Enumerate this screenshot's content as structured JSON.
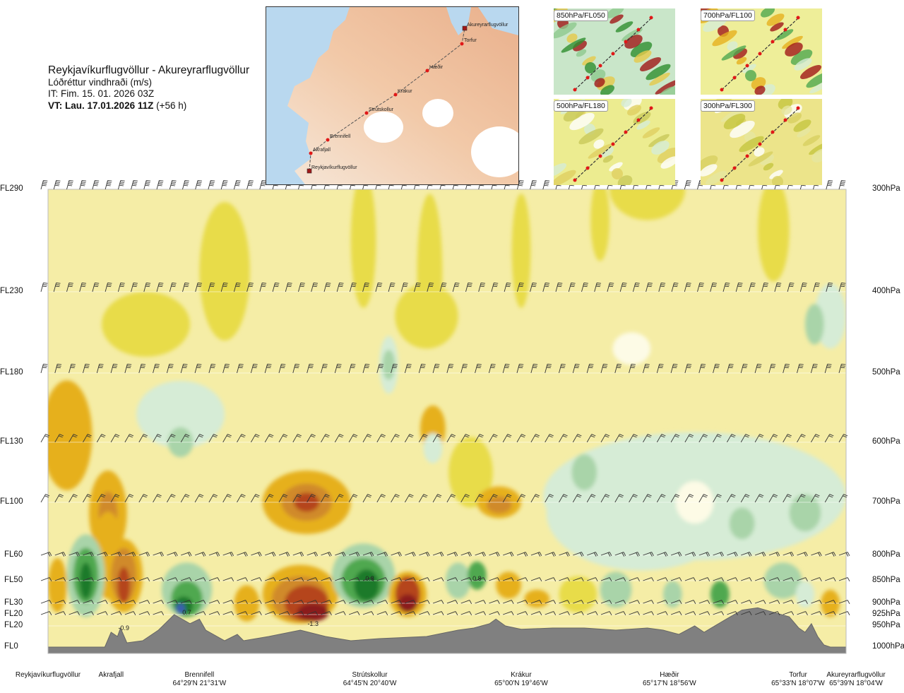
{
  "header": {
    "route": "Reykjavíkurflugvöllur - Akureyrarflugvöllur",
    "quantity": "Lóðréttur vindhraði (m/s)",
    "initial_time": "IT: Fim. 15. 01. 2026 03Z",
    "valid_label": "VT:",
    "valid_time": "Lau. 17.01.2026 11Z",
    "lead_time": "(+56 h)"
  },
  "colors": {
    "strong_up_dark": "#8b1a1a",
    "strong_up": "#b5451b",
    "up_brown": "#d08a2a",
    "up_orange": "#e6b01e",
    "weak_up_yellow": "#e8dc4a",
    "background_yellow": "#f5eda6",
    "neutral_light": "#fdfbe6",
    "weak_down": "#d6ecd6",
    "down_mid": "#a9d4a9",
    "down_green": "#4fa84f",
    "down_dark": "#1a7a2a",
    "strongest_down_blue": "#3a5fb0",
    "terrain": "#808080"
  },
  "chart_data": {
    "type": "vertical-cross-section",
    "quantity": "Lóðréttur vindhraði (m/s)",
    "left_axis_flight_levels": [
      "FL290",
      "FL230",
      "FL180",
      "FL130",
      "FL100",
      "FL60",
      "FL50",
      "FL30",
      "FL20",
      "FL20",
      "FL0"
    ],
    "right_axis_pressure": [
      "300hPa",
      "400hPa",
      "500hPa",
      "600hPa",
      "700hPa",
      "800hPa",
      "850hPa",
      "900hPa",
      "925hPa",
      "950hPa",
      "1000hPa"
    ],
    "levels_hpa": [
      300,
      400,
      500,
      600,
      700,
      800,
      850,
      900,
      925,
      950,
      1000
    ],
    "route_distance_km": [
      0,
      20,
      48,
      102,
      150,
      197,
      253
    ],
    "stations": [
      {
        "name": "Reykjavíkurflugvöllur",
        "coord": "",
        "distance_km": 0
      },
      {
        "name": "Akrafjall",
        "coord": "",
        "distance_km": 20
      },
      {
        "name": "Brennifell",
        "coord": "64°29'N 21°31'W",
        "distance_km": 48
      },
      {
        "name": "Strútskollur",
        "coord": "64°45'N 20°40'W",
        "distance_km": 102
      },
      {
        "name": "Krákur",
        "coord": "65°00'N 19°46'W",
        "distance_km": 150
      },
      {
        "name": "Hæðir",
        "coord": "65°17'N 18°56'W",
        "distance_km": 197
      },
      {
        "name": "Torfur",
        "coord": "65°33'N 18°07'W",
        "distance_km": 246
      },
      {
        "name": "Akureyrarflugvöllur",
        "coord": "65°39'N 18°04'W",
        "distance_km": 253
      }
    ],
    "contour_labels": [
      {
        "text": "0.8",
        "distance_km": 102,
        "level_hpa": 850
      },
      {
        "text": "0.8",
        "distance_km": 136,
        "level_hpa": 850
      },
      {
        "text": "-1.3",
        "distance_km": 84,
        "level_hpa": 950
      },
      {
        "text": "0.7",
        "distance_km": 44,
        "level_hpa": 925
      },
      {
        "text": "-0.9",
        "distance_km": 24,
        "level_hpa": 960
      }
    ]
  },
  "map": {
    "places": [
      "Akureyrarflugvöllur",
      "Torfur",
      "Hæðir",
      "Krákur",
      "Strútskollur",
      "Brennifell",
      "Akrafjall",
      "Reykjavíkurflugvöllur"
    ]
  },
  "thumbnails": [
    {
      "label": "850hPa/FL050"
    },
    {
      "label": "700hPa/FL100"
    },
    {
      "label": "500hPa/FL180"
    },
    {
      "label": "300hPa/FL300"
    }
  ]
}
